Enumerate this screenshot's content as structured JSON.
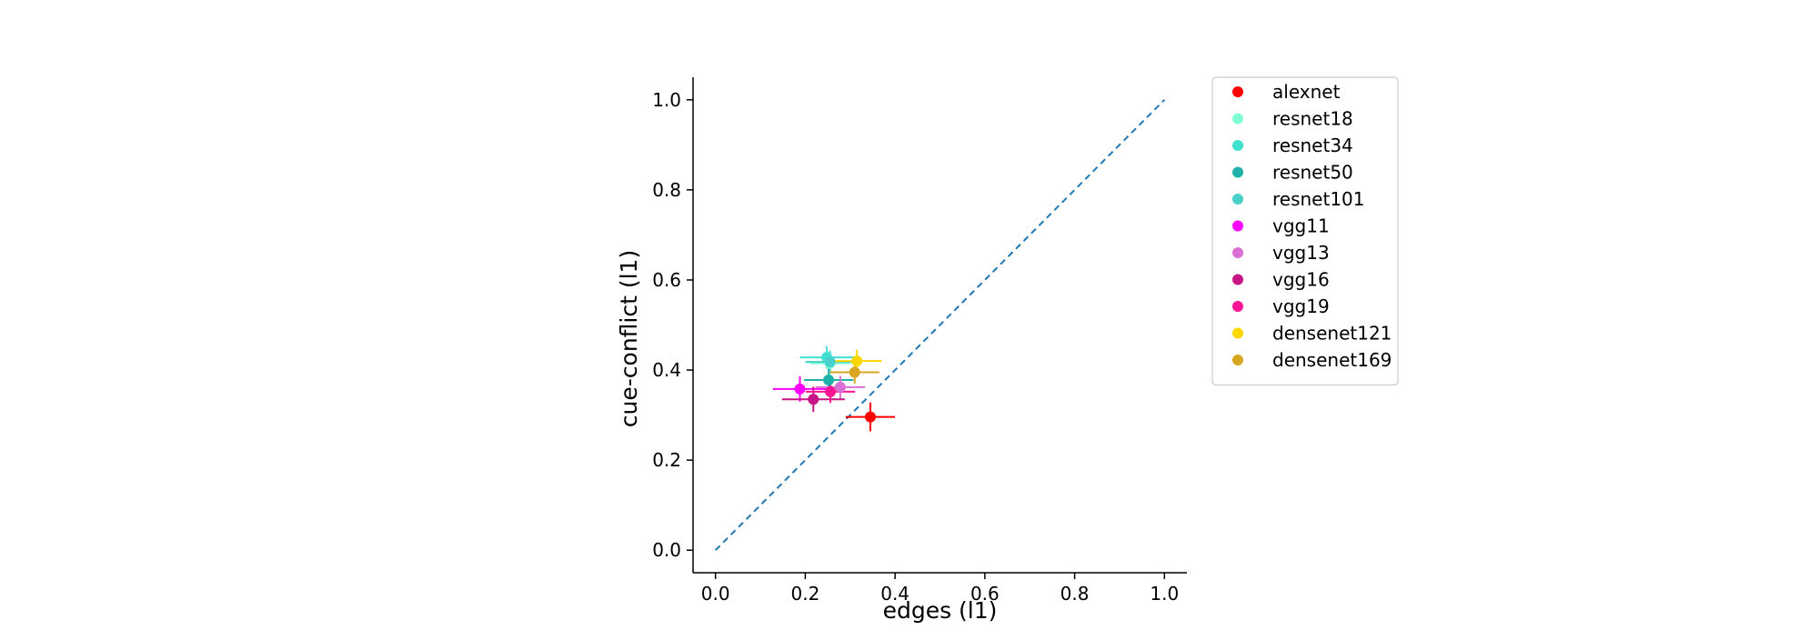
{
  "chart_data": {
    "type": "scatter",
    "title": "",
    "xlabel": "edges (l1)",
    "ylabel": "cue-conflict (l1)",
    "xlim": [
      -0.05,
      1.05
    ],
    "ylim": [
      -0.05,
      1.05
    ],
    "xticks": [
      0.0,
      0.2,
      0.4,
      0.6,
      0.8,
      1.0
    ],
    "yticks": [
      0.0,
      0.2,
      0.4,
      0.6,
      0.8,
      1.0
    ],
    "xtick_labels": [
      "0.0",
      "0.2",
      "0.4",
      "0.6",
      "0.8",
      "1.0"
    ],
    "ytick_labels": [
      "0.0",
      "0.2",
      "0.4",
      "0.6",
      "0.8",
      "1.0"
    ],
    "grid": false,
    "legend_position": "outside right, top",
    "diagonal": {
      "from": [
        0,
        0
      ],
      "to": [
        1,
        1
      ],
      "style": "dashed",
      "color": "#1f77b4"
    },
    "series": [
      {
        "name": "alexnet",
        "color": "#ff0000",
        "x": 0.345,
        "y": 0.296,
        "xerr": 0.055,
        "yerr": 0.032
      },
      {
        "name": "resnet18",
        "color": "#7fffd4",
        "x": 0.255,
        "y": 0.415,
        "xerr": 0.045,
        "yerr": 0.025
      },
      {
        "name": "resnet34",
        "color": "#40e0d0",
        "x": 0.248,
        "y": 0.428,
        "xerr": 0.06,
        "yerr": 0.025
      },
      {
        "name": "resnet50",
        "color": "#20b2aa",
        "x": 0.252,
        "y": 0.378,
        "xerr": 0.055,
        "yerr": 0.025
      },
      {
        "name": "resnet101",
        "color": "#48d1cc",
        "x": 0.255,
        "y": 0.418,
        "xerr": 0.055,
        "yerr": 0.025
      },
      {
        "name": "vgg11",
        "color": "#ff00ff",
        "x": 0.188,
        "y": 0.358,
        "xerr": 0.06,
        "yerr": 0.028
      },
      {
        "name": "vgg13",
        "color": "#da70d6",
        "x": 0.278,
        "y": 0.362,
        "xerr": 0.055,
        "yerr": 0.025
      },
      {
        "name": "vgg16",
        "color": "#c71585",
        "x": 0.218,
        "y": 0.335,
        "xerr": 0.07,
        "yerr": 0.028
      },
      {
        "name": "vgg19",
        "color": "#ff1493",
        "x": 0.256,
        "y": 0.352,
        "xerr": 0.055,
        "yerr": 0.025
      },
      {
        "name": "densenet121",
        "color": "#ffd700",
        "x": 0.315,
        "y": 0.42,
        "xerr": 0.055,
        "yerr": 0.025
      },
      {
        "name": "densenet169",
        "color": "#daa520",
        "x": 0.31,
        "y": 0.395,
        "xerr": 0.055,
        "yerr": 0.025
      }
    ]
  }
}
